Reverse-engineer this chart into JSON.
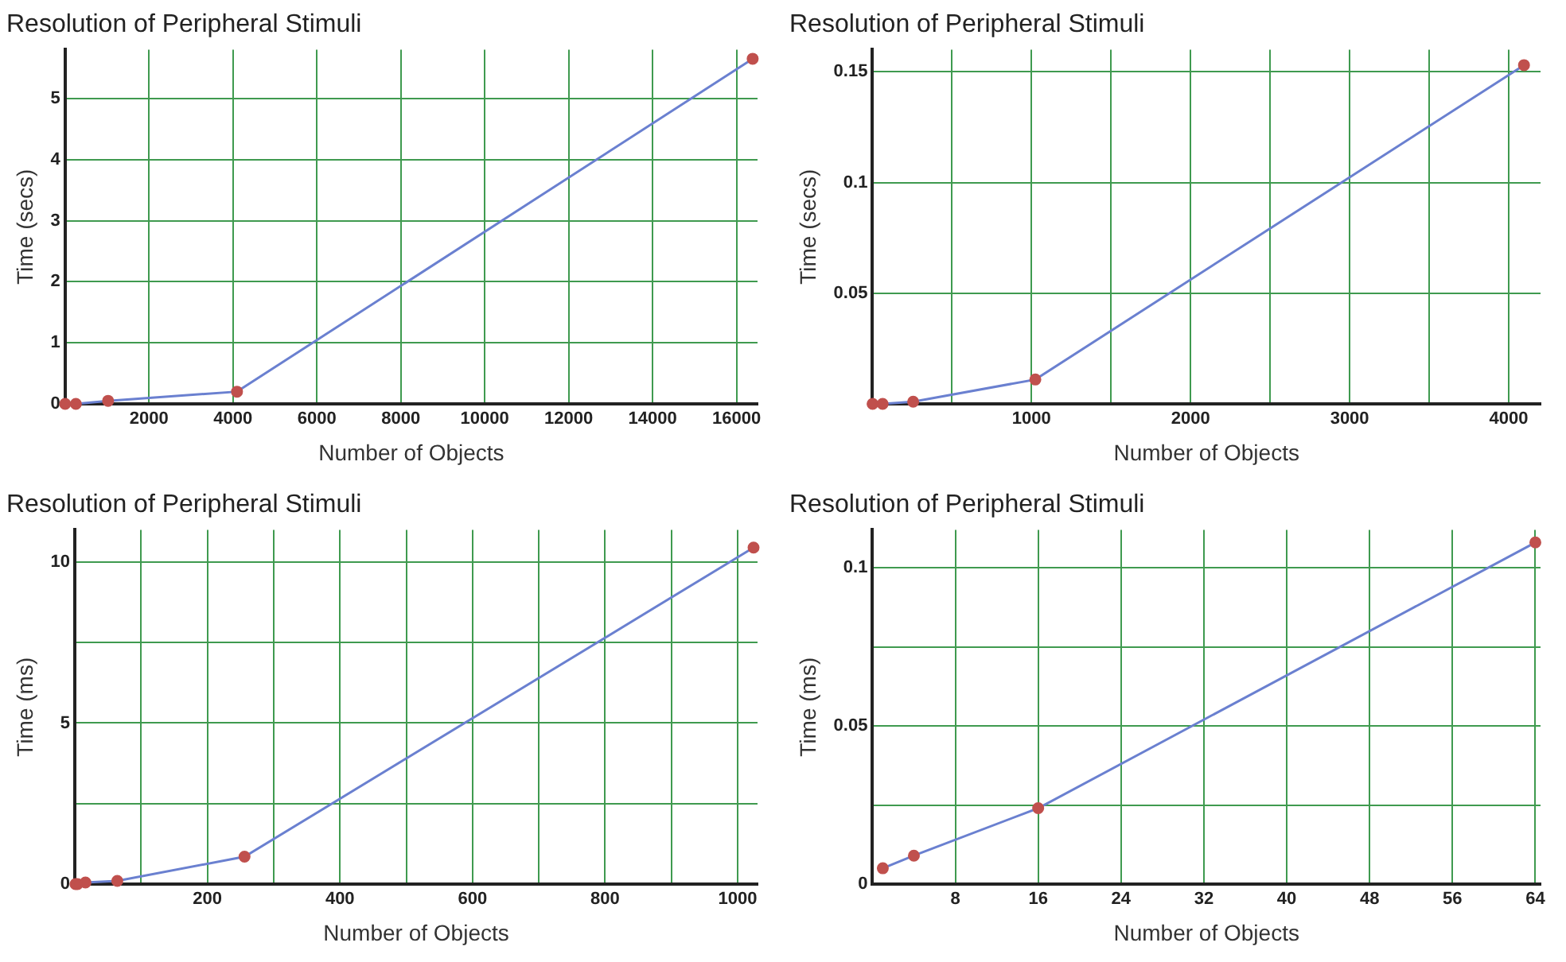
{
  "chart_data": [
    {
      "type": "line",
      "title": "Resolution of Peripheral Stimuli",
      "xlabel": "Number of Objects",
      "ylabel": "Time (secs)",
      "x": [
        1,
        256,
        1024,
        4096,
        16384
      ],
      "series": [
        {
          "color": "#6a80d0",
          "colors": [
            "#c0504d",
            "#c0504d",
            "#c0504d",
            "#c0504d",
            "#c0504d"
          ],
          "values": [
            0,
            0,
            0.05,
            0.2,
            5.65
          ]
        }
      ],
      "xlim": [
        0,
        16500
      ],
      "xticks": [
        2000,
        4000,
        6000,
        8000,
        10000,
        12000,
        14000,
        16000
      ],
      "ylim": [
        0,
        5.8
      ],
      "yticks": [
        0,
        1,
        2,
        3,
        4,
        5
      ],
      "grid": true,
      "legend": false,
      "marker": "circle"
    },
    {
      "type": "line",
      "title": "Resolution of Peripheral Stimuli",
      "xlabel": "Number of Objects",
      "ylabel": "Time (secs)",
      "x": [
        1,
        64,
        256,
        1024,
        4096
      ],
      "series": [
        {
          "color": "#6a80d0",
          "colors": [
            "#c0504d",
            "#c0504d",
            "#c0504d",
            "#c0504d",
            "#c0504d"
          ],
          "values": [
            0,
            0,
            0.001,
            0.011,
            0.153
          ]
        }
      ],
      "xlim": [
        0,
        4200
      ],
      "xticks": [
        {
          "value": 500,
          "label": null
        },
        1000,
        {
          "value": 1500,
          "label": null
        },
        2000,
        {
          "value": 2500,
          "label": null
        },
        3000,
        {
          "value": 3500,
          "label": null
        },
        4000
      ],
      "ylim": [
        0,
        0.16
      ],
      "yticks": [
        0.05,
        0.1,
        0.15
      ],
      "grid": true,
      "legend": false,
      "marker": "circle"
    },
    {
      "type": "line",
      "title": "Resolution of Peripheral Stimuli",
      "xlabel": "Number of Objects",
      "ylabel": "Time (ms)",
      "x": [
        1,
        4,
        16,
        64,
        256,
        1024
      ],
      "series": [
        {
          "color": "#6a80d0",
          "colors": [
            "#c0504d",
            "#c0504d",
            "#c0504d",
            "#c0504d",
            "#c0504d",
            "#c0504d"
          ],
          "values": [
            0,
            0,
            0.05,
            0.1,
            0.85,
            10.45
          ]
        }
      ],
      "xlim": [
        0,
        1030
      ],
      "xticks": [
        {
          "value": 100,
          "label": null
        },
        200,
        {
          "value": 300,
          "label": null
        },
        400,
        {
          "value": 500,
          "label": null
        },
        600,
        {
          "value": 700,
          "label": null
        },
        800,
        {
          "value": 900,
          "label": null
        },
        1000
      ],
      "ylim": [
        0,
        11
      ],
      "yticks": [
        0,
        {
          "value": 2.5,
          "label": null
        },
        5,
        {
          "value": 7.5,
          "label": null
        },
        10
      ],
      "grid": true,
      "legend": false,
      "marker": "circle"
    },
    {
      "type": "line",
      "title": "Resolution of Peripheral Stimuli",
      "xlabel": "Number of Objects",
      "ylabel": "Time (ms)",
      "x": [
        1,
        4,
        16,
        64
      ],
      "series": [
        {
          "color": "#6a80d0",
          "colors": [
            "#c0504d",
            "#c0504d",
            "#c0504d",
            "#c0504d"
          ],
          "values": [
            0.005,
            0.009,
            0.024,
            0.108
          ]
        }
      ],
      "xlim": [
        0,
        64.5
      ],
      "xticks": [
        8,
        16,
        24,
        32,
        40,
        48,
        56,
        64
      ],
      "ylim": [
        0,
        0.112
      ],
      "yticks": [
        0,
        {
          "value": 0.025,
          "label": null
        },
        0.05,
        {
          "value": 0.075,
          "label": null
        },
        0.1
      ],
      "grid": true,
      "legend": false,
      "marker": "circle"
    }
  ]
}
